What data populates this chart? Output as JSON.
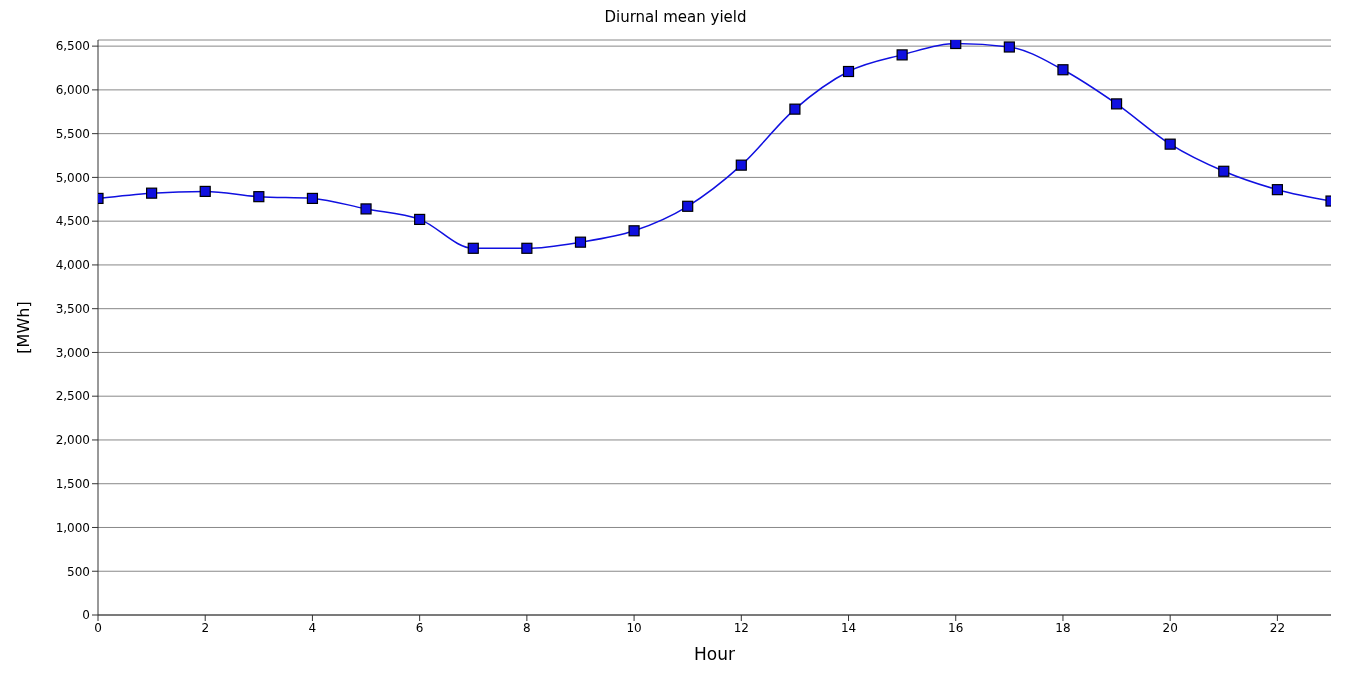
{
  "chart_data": {
    "type": "line",
    "title": "Diurnal mean yield",
    "xlabel": "Hour",
    "ylabel": "[MWh]",
    "x": [
      0,
      1,
      2,
      3,
      4,
      5,
      6,
      7,
      8,
      9,
      10,
      11,
      12,
      13,
      14,
      15,
      16,
      17,
      18,
      19,
      20,
      21,
      22,
      23
    ],
    "series": [
      {
        "color": "#1010e0",
        "values": [
          4760,
          4820,
          4840,
          4780,
          4760,
          4640,
          4520,
          4190,
          4190,
          4260,
          4390,
          4670,
          5140,
          5780,
          6210,
          6400,
          6530,
          6490,
          6230,
          5840,
          5380,
          5070,
          4860,
          4730
        ]
      }
    ],
    "xlim": [
      0,
      23
    ],
    "xticks": [
      0,
      2,
      4,
      6,
      8,
      10,
      12,
      14,
      16,
      18,
      20,
      22
    ],
    "ylim": [
      0,
      6570
    ],
    "yticks": [
      0,
      500,
      {
        "value": 1000,
        "label": "1,000"
      },
      {
        "value": 1500,
        "label": "1,500"
      },
      {
        "value": 2000,
        "label": "2,000"
      },
      {
        "value": 2500,
        "label": "2,500"
      },
      {
        "value": 3000,
        "label": "3,000"
      },
      {
        "value": 3500,
        "label": "3,500"
      },
      {
        "value": 4000,
        "label": "4,000"
      },
      {
        "value": 4500,
        "label": "4,500"
      },
      {
        "value": 5000,
        "label": "5,000"
      },
      {
        "value": 5500,
        "label": "5,500"
      },
      {
        "value": 6000,
        "label": "6,000"
      },
      {
        "value": 6500,
        "label": "6,500"
      }
    ],
    "grid": "y",
    "marker": "square",
    "line_style": "solid"
  }
}
